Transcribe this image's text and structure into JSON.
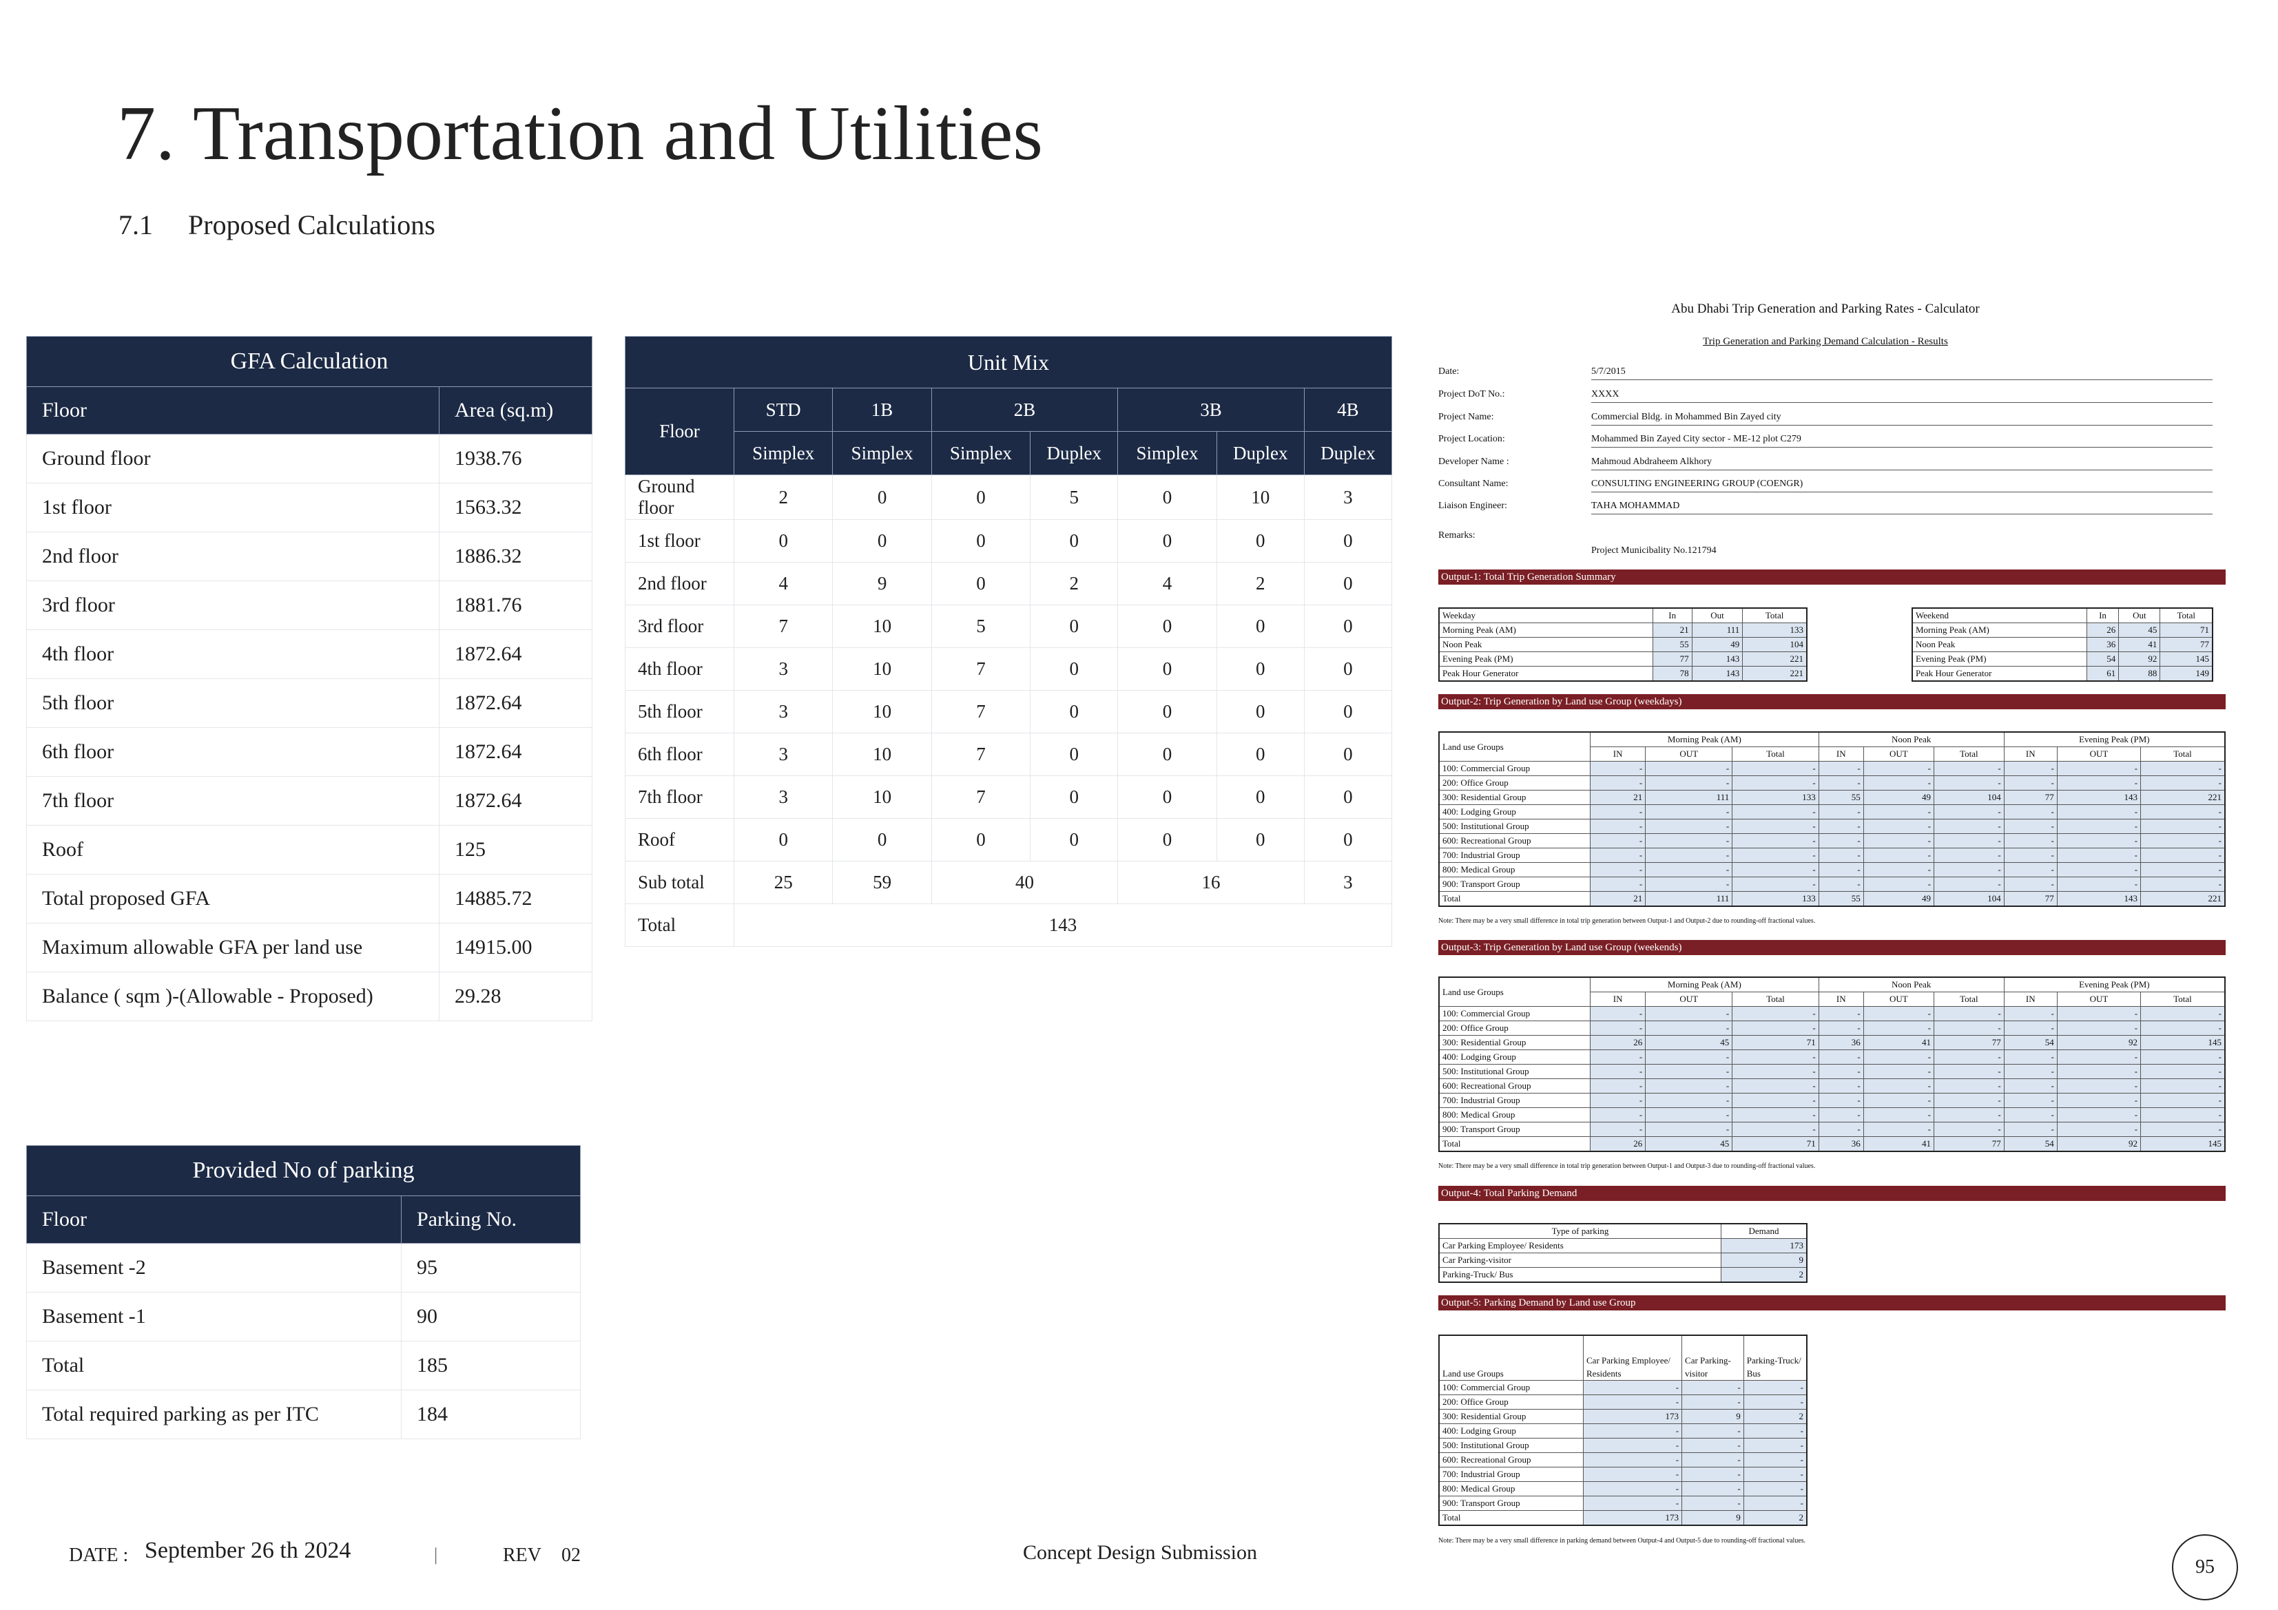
{
  "header": {
    "title": "7. Transportation and Utilities",
    "section_number": "7.1",
    "section_title": "Proposed Calculations"
  },
  "gfa": {
    "title": "GFA Calculation",
    "headers": [
      "Floor",
      "Area (sq.m)"
    ],
    "rows": [
      [
        "Ground floor",
        "1938.76"
      ],
      [
        "1st floor",
        "1563.32"
      ],
      [
        "2nd floor",
        "1886.32"
      ],
      [
        "3rd floor",
        "1881.76"
      ],
      [
        "4th floor",
        "1872.64"
      ],
      [
        "5th floor",
        "1872.64"
      ],
      [
        "6th floor",
        "1872.64"
      ],
      [
        "7th floor",
        "1872.64"
      ],
      [
        "Roof",
        "125"
      ],
      [
        "Total proposed GFA",
        "14885.72"
      ],
      [
        "Maximum allowable GFA per land use",
        "14915.00"
      ],
      [
        "Balance ( sqm )-(Allowable - Proposed)",
        "29.28"
      ]
    ]
  },
  "unit_mix": {
    "title": "Unit Mix",
    "floor_header": "Floor",
    "types": [
      "STD",
      "1B",
      "2B",
      "3B",
      "4B"
    ],
    "subtypes": [
      "Simplex",
      "Simplex",
      "Simplex",
      "Duplex",
      "Simplex",
      "Duplex",
      "Duplex"
    ],
    "rows": [
      {
        "floor": "Ground floor",
        "values": [
          "2",
          "0",
          "0",
          "5",
          "0",
          "10",
          "3"
        ]
      },
      {
        "floor": "1st floor",
        "values": [
          "0",
          "0",
          "0",
          "0",
          "0",
          "0",
          "0"
        ]
      },
      {
        "floor": "2nd floor",
        "values": [
          "4",
          "9",
          "0",
          "2",
          "4",
          "2",
          "0"
        ]
      },
      {
        "floor": "3rd floor",
        "values": [
          "7",
          "10",
          "5",
          "0",
          "0",
          "0",
          "0"
        ]
      },
      {
        "floor": "4th floor",
        "values": [
          "3",
          "10",
          "7",
          "0",
          "0",
          "0",
          "0"
        ]
      },
      {
        "floor": "5th floor",
        "values": [
          "3",
          "10",
          "7",
          "0",
          "0",
          "0",
          "0"
        ]
      },
      {
        "floor": "6th floor",
        "values": [
          "3",
          "10",
          "7",
          "0",
          "0",
          "0",
          "0"
        ]
      },
      {
        "floor": "7th floor",
        "values": [
          "3",
          "10",
          "7",
          "0",
          "0",
          "0",
          "0"
        ]
      },
      {
        "floor": "Roof",
        "values": [
          "0",
          "0",
          "0",
          "0",
          "0",
          "0",
          "0"
        ]
      }
    ],
    "subtotal_label": "Sub total",
    "subtotal": [
      "25",
      "59",
      "40",
      "16",
      "3"
    ],
    "total_label": "Total",
    "total": "143"
  },
  "parking": {
    "title": "Provided No of parking",
    "headers": [
      "Floor",
      "Parking  No."
    ],
    "rows": [
      [
        "Basement -2",
        "95"
      ],
      [
        "Basement -1",
        "90"
      ],
      [
        "Total",
        "185"
      ],
      [
        "Total required parking as per ITC",
        "184"
      ]
    ]
  },
  "calculator": {
    "title": "Abu Dhabi Trip Generation and Parking Rates - Calculator",
    "subtitle": "Trip Generation and Parking Demand Calculation - Results",
    "info": [
      [
        "Date:",
        "5/7/2015"
      ],
      [
        "Project DoT No.:",
        "XXXX"
      ],
      [
        "Project Name:",
        "Commercial Bldg. in Mohammed Bin Zayed city"
      ],
      [
        "Project Location:",
        "Mohammed Bin Zayed City  sector - ME-12    plot C279"
      ],
      [
        "Developer Name :",
        "Mahmoud Abdraheem Alkhory"
      ],
      [
        "Consultant Name:",
        "CONSULTING ENGINEERING GROUP (COENGR)"
      ],
      [
        "Liaison Engineer:",
        "TAHA MOHAMMAD"
      ]
    ],
    "remarks_label": "Remarks:",
    "remarks": "Project  Municibality No.121794",
    "output1_title": "Output-1: Total Trip Generation Summary",
    "weekday": {
      "headers": [
        "Weekday",
        "In",
        "Out",
        "Total"
      ],
      "rows": [
        [
          "Morning Peak (AM)",
          "21",
          "111",
          "133"
        ],
        [
          "Noon Peak",
          "55",
          "49",
          "104"
        ],
        [
          "Evening Peak (PM)",
          "77",
          "143",
          "221"
        ],
        [
          "Peak Hour Generator",
          "78",
          "143",
          "221"
        ]
      ]
    },
    "weekend": {
      "headers": [
        "Weekend",
        "In",
        "Out",
        "Total"
      ],
      "rows": [
        [
          "Morning Peak (AM)",
          "26",
          "45",
          "71"
        ],
        [
          "Noon Peak",
          "36",
          "41",
          "77"
        ],
        [
          "Evening Peak (PM)",
          "54",
          "92",
          "145"
        ],
        [
          "Peak Hour Generator",
          "61",
          "88",
          "149"
        ]
      ]
    },
    "output2_title": "Output-2:  Trip Generation by Land use Group (weekdays)",
    "output3_title": "Output-3: Trip Generation by Land use Group (weekends)",
    "group_header": "Land use Groups",
    "periods": [
      "Morning Peak (AM)",
      "Noon Peak",
      "Evening Peak (PM)"
    ],
    "sub_headers": [
      "IN",
      "OUT",
      "Total"
    ],
    "groups": [
      "100: Commercial Group",
      "200: Office Group",
      "300: Residential Group",
      "400: Lodging Group",
      "500: Institutional Group",
      "600: Recreational Group",
      "700: Industrial Group",
      "800: Medical Group",
      "900: Transport Group",
      "Total"
    ],
    "dash": "-",
    "weekday_residential": [
      "21",
      "111",
      "133",
      "55",
      "49",
      "104",
      "77",
      "143",
      "221"
    ],
    "weekend_residential": [
      "26",
      "45",
      "71",
      "36",
      "41",
      "77",
      "54",
      "92",
      "145"
    ],
    "note2": "Note: There may be a very small difference in total trip generation between Output-1 and Output-2 due to rounding-off fractional values.",
    "note3": "Note: There may be a very small difference in total trip generation between Output-1 and Output-3 due to rounding-off fractional values.",
    "output4_title": "Output-4: Total Parking Demand",
    "parking_demand": {
      "headers": [
        "Type of parking",
        "Demand"
      ],
      "rows": [
        [
          "Car Parking Employee/ Residents",
          "173"
        ],
        [
          "Car Parking-visitor",
          "9"
        ],
        [
          "Parking-Truck/ Bus",
          "2"
        ]
      ]
    },
    "output5_title": "Output-5: Parking Demand by Land use Group",
    "parking_by_group_headers": [
      "Land use Groups",
      "Car Parking Employee/ Residents",
      "Car Parking-visitor",
      "Parking-Truck/ Bus"
    ],
    "parking_residential": [
      "173",
      "9",
      "2"
    ],
    "parking_total": [
      "173",
      "9",
      "2"
    ],
    "note5": "Note: There may be a very small difference in parking demand between Output-4 and Output-5 due to rounding-off fractional values."
  },
  "footer": {
    "date_label": "DATE :",
    "date": "September 26 th 2024",
    "separator": "|",
    "rev_label": "REV",
    "rev": "02",
    "center": "Concept Design Submission",
    "page": "95"
  }
}
